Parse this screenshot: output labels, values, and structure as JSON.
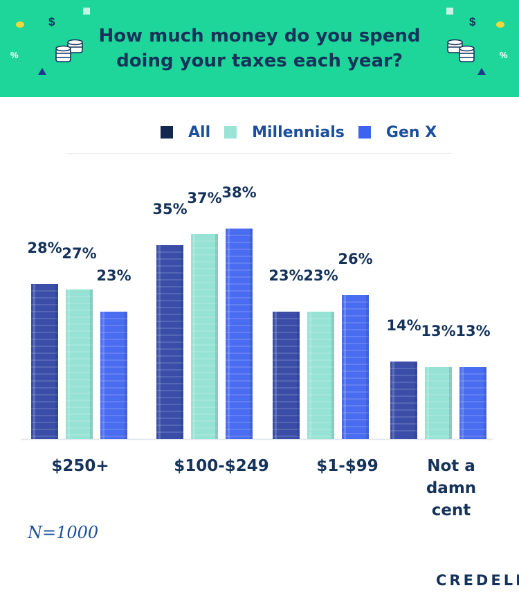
{
  "chart_data": {
    "type": "bar",
    "title": "How much money do you spend doing your taxes each year?",
    "categories": [
      "$250+",
      "$100-$249",
      "$1-$99",
      "Not a damn cent"
    ],
    "category_lines": [
      [
        "$250+"
      ],
      [
        "$100-$249"
      ],
      [
        "$1-$99"
      ],
      [
        "Not a",
        "damn",
        "cent"
      ]
    ],
    "series": [
      {
        "name": "All",
        "values": [
          28,
          35,
          23,
          14
        ],
        "color": "#3a4ea8"
      },
      {
        "name": "Millennials",
        "values": [
          27,
          37,
          23,
          13
        ],
        "color": "#96e2d4"
      },
      {
        "name": "Gen X",
        "values": [
          23,
          38,
          26,
          13
        ],
        "color": "#4a6cf0"
      }
    ],
    "value_suffix": "%",
    "ylim": [
      0,
      40
    ],
    "grid": false,
    "legend_position": "top"
  },
  "legend": {
    "items": [
      {
        "label": "All",
        "color": "#12284f"
      },
      {
        "label": "Millennials",
        "color": "#9be3d6"
      },
      {
        "label": "Gen X",
        "color": "#3d63f2"
      }
    ]
  },
  "note": "N=1000",
  "brand": "CREDELLO",
  "decor": {
    "dollar": "$",
    "percent": "%"
  },
  "colors": {
    "banner": "#1fd69a",
    "title": "#14325a",
    "accent": "#1b4f9c"
  }
}
